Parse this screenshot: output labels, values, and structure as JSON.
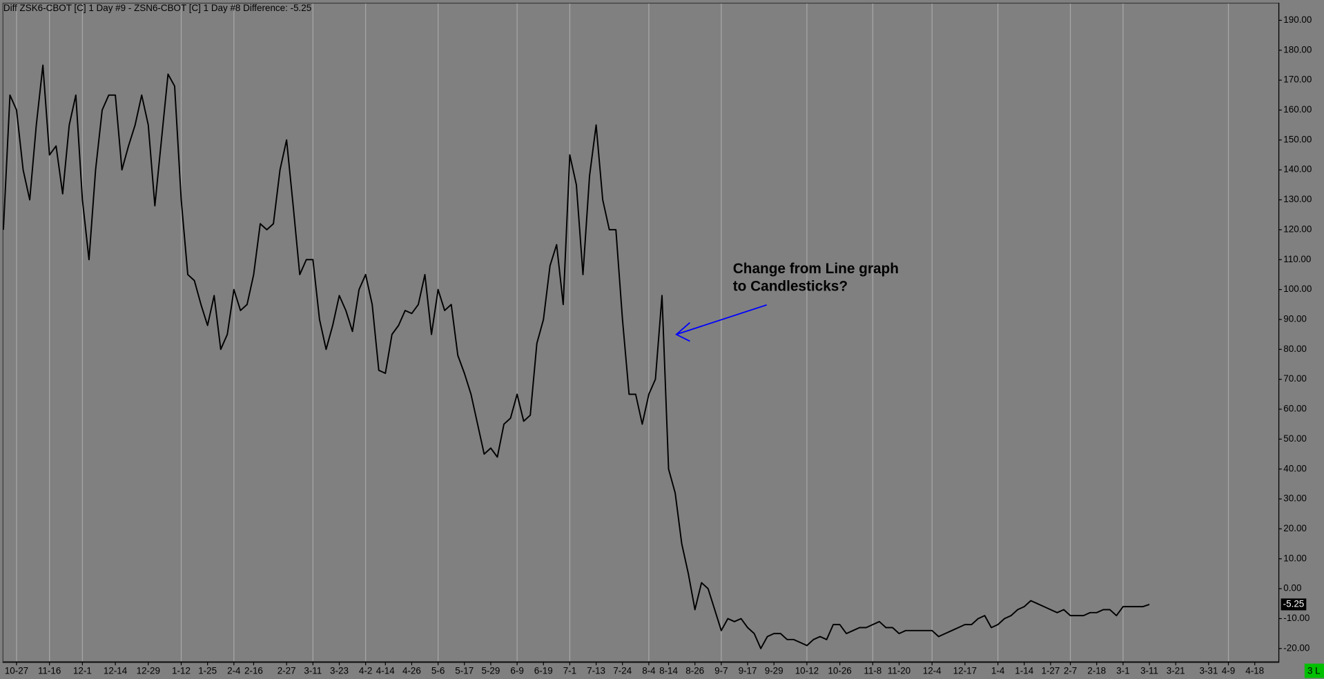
{
  "chart_data": {
    "type": "line",
    "title": "Diff ZSK6-CBOT [C]  1 Day  #9 - ZSN6-CBOT [C]  1 Day  #8  Difference: -5.25",
    "annotation": [
      "Change from Line graph",
      "to Candlesticks?"
    ],
    "status": "3 L",
    "color": "#000000",
    "grid": true,
    "categories": [
      null,
      null,
      "10-27",
      null,
      null,
      null,
      null,
      "11-16",
      null,
      null,
      null,
      null,
      "12-1",
      null,
      null,
      null,
      null,
      "12-14",
      null,
      null,
      null,
      null,
      "12-29",
      null,
      null,
      null,
      null,
      "1-12",
      null,
      null,
      null,
      "1-25",
      null,
      null,
      null,
      "2-4",
      null,
      null,
      "2-16",
      null,
      null,
      null,
      null,
      "2-27",
      null,
      null,
      null,
      "3-11",
      null,
      null,
      null,
      "3-23",
      null,
      null,
      null,
      "4-2",
      null,
      null,
      "4-14",
      null,
      null,
      null,
      "4-26",
      null,
      null,
      null,
      "5-6",
      null,
      null,
      null,
      "5-17",
      null,
      null,
      null,
      "5-29",
      null,
      null,
      null,
      "6-9",
      null,
      null,
      null,
      "6-19",
      null,
      null,
      null,
      "7-1",
      null,
      null,
      null,
      "7-13",
      null,
      null,
      null,
      "7-24",
      null,
      null,
      null,
      "8-4",
      null,
      null,
      "8-14",
      null,
      null,
      null,
      "8-26",
      null,
      null,
      null,
      "9-7",
      null,
      null,
      null,
      "9-17",
      null,
      null,
      null,
      "9-29",
      null,
      null,
      null,
      null,
      "10-12",
      null,
      null,
      null,
      null,
      "10-26",
      null,
      null,
      null,
      null,
      "11-8",
      null,
      null,
      null,
      "11-20",
      null,
      null,
      null,
      null,
      "12-4",
      null,
      null,
      null,
      null,
      "12-17",
      null,
      null,
      null,
      null,
      "1-4",
      null,
      null,
      null,
      "1-14",
      null,
      null,
      null,
      "1-27",
      null,
      null,
      "2-7",
      null,
      null,
      null,
      "2-18",
      null,
      null,
      null,
      "3-1",
      null,
      null,
      null,
      "3-11",
      null,
      null,
      null,
      "3-21",
      null,
      null,
      null,
      null,
      "3-31",
      null,
      null,
      "4-9",
      null,
      null,
      null,
      "4-18"
    ],
    "values": [
      120,
      165,
      160,
      140,
      130,
      155,
      175,
      145,
      148,
      132,
      155,
      165,
      130,
      110,
      140,
      160,
      165,
      165,
      140,
      148,
      155,
      165,
      155,
      128,
      150,
      172,
      168,
      130,
      105,
      103,
      95,
      88,
      98,
      80,
      85,
      100,
      93,
      95,
      105,
      122,
      120,
      122,
      140,
      150,
      128,
      105,
      110,
      110,
      90,
      80,
      88,
      98,
      93,
      86,
      100,
      105,
      95,
      73,
      72,
      85,
      88,
      93,
      92,
      95,
      105,
      85,
      100,
      93,
      95,
      78,
      72,
      65,
      55,
      45,
      47,
      44,
      55,
      57,
      65,
      56,
      58,
      82,
      90,
      108,
      115,
      95,
      145,
      135,
      105,
      138,
      155,
      130,
      120,
      120,
      90,
      65,
      65,
      55,
      65,
      70,
      98,
      40,
      32,
      15,
      5,
      -7,
      2,
      0,
      -7,
      -14,
      -10,
      -11,
      -10,
      -13,
      -15,
      -20,
      -16,
      -15,
      -15,
      -17,
      -17,
      -18,
      -19,
      -17,
      -16,
      -17,
      -12,
      -12,
      -15,
      -14,
      -13,
      -13,
      -12,
      -11,
      -13,
      -13,
      -15,
      -14,
      -14,
      -14,
      -14,
      -14,
      -16,
      -15,
      -14,
      -13,
      -12,
      -12,
      -10,
      -9,
      -13,
      -12,
      -10,
      -9,
      -7,
      -6,
      -4,
      -5,
      -6,
      -7,
      -8,
      -7,
      -9,
      -9,
      -9,
      -8,
      -8,
      -7,
      -7,
      -9,
      -6,
      -6,
      -6,
      -6,
      -5.25,
      null,
      null,
      null,
      null,
      null,
      null,
      null,
      null,
      null,
      null,
      null,
      null,
      null,
      null,
      null,
      null
    ],
    "ylim": [
      -24.2,
      195.6
    ],
    "yticks": [
      {
        "value": 190,
        "label": "190.00"
      },
      {
        "value": 180,
        "label": "180.00"
      },
      {
        "value": 170,
        "label": "170.00"
      },
      {
        "value": 160,
        "label": "160.00"
      },
      {
        "value": 150,
        "label": "150.00"
      },
      {
        "value": 140,
        "label": "140.00"
      },
      {
        "value": 130,
        "label": "130.00"
      },
      {
        "value": 120,
        "label": "120.00"
      },
      {
        "value": 110,
        "label": "110.00"
      },
      {
        "value": 100,
        "label": "100.00"
      },
      {
        "value": 90,
        "label": "90.00"
      },
      {
        "value": 80,
        "label": "80.00"
      },
      {
        "value": 70,
        "label": "70.00"
      },
      {
        "value": 60,
        "label": "60.00"
      },
      {
        "value": 50,
        "label": "50.00"
      },
      {
        "value": 40,
        "label": "40.00"
      },
      {
        "value": 30,
        "label": "30.00"
      },
      {
        "value": 20,
        "label": "20.00"
      },
      {
        "value": 10,
        "label": "10.00"
      },
      {
        "value": 0,
        "label": "0.00"
      },
      {
        "value": -10,
        "label": "-10.00"
      },
      {
        "value": -20,
        "label": "-20.00"
      }
    ]
  }
}
